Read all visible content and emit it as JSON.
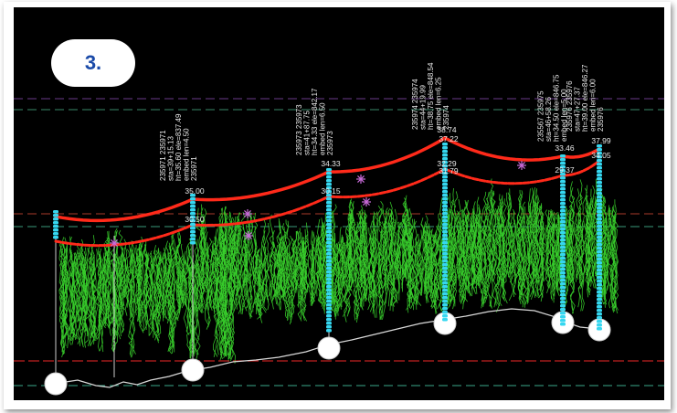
{
  "badge": {
    "label": "3."
  },
  "colors": {
    "background": "#000000",
    "wire": "#ff2a1a",
    "vegetation": "#39d12c",
    "pole": "#35d7f0",
    "ground": "#d9d9d9",
    "label_text": "#e8e8e8"
  },
  "poles": [
    {
      "id": "pole-1",
      "info": [],
      "upper_value": "",
      "lower_value": ""
    },
    {
      "id": "pole-2",
      "info": [
        "235971 235971",
        "sta=39+15.13",
        "ht=35.60 ele=837.49",
        "embed len=4.50",
        "235971"
      ],
      "upper_value": "35.00",
      "lower_value": "30.50"
    },
    {
      "id": "pole-3",
      "info": [
        "235973 235973",
        "sta=41+87.75",
        "ht=34.33 ele=842.17",
        "embed len=6.50",
        "235973"
      ],
      "upper_value": "34.33",
      "lower_value": "30.15"
    },
    {
      "id": "pole-4",
      "info": [
        "235974 235974",
        "sta=44+19.99",
        "ht=38.75 ele=848.54",
        "embed len=6.25",
        "235974"
      ],
      "upper_value": "38.74",
      "upper_value_2": "37.22",
      "lower_value": "32.29",
      "lower_value_2": "31.79"
    },
    {
      "id": "pole-5",
      "info": [
        "235567 235975",
        "sta=46+58.26",
        "ht=34.50 ele=846.75",
        "embed len=5.00"
      ],
      "upper_value": "33.46",
      "lower_value": "29.37"
    },
    {
      "id": "pole-6",
      "info": [
        "235976 235976",
        "sta=47+27.37",
        "ht=39.00 ele=846.27",
        "embed len=6.00",
        "235976"
      ],
      "upper_value": "37.99",
      "lower_value": "34.05"
    }
  ]
}
